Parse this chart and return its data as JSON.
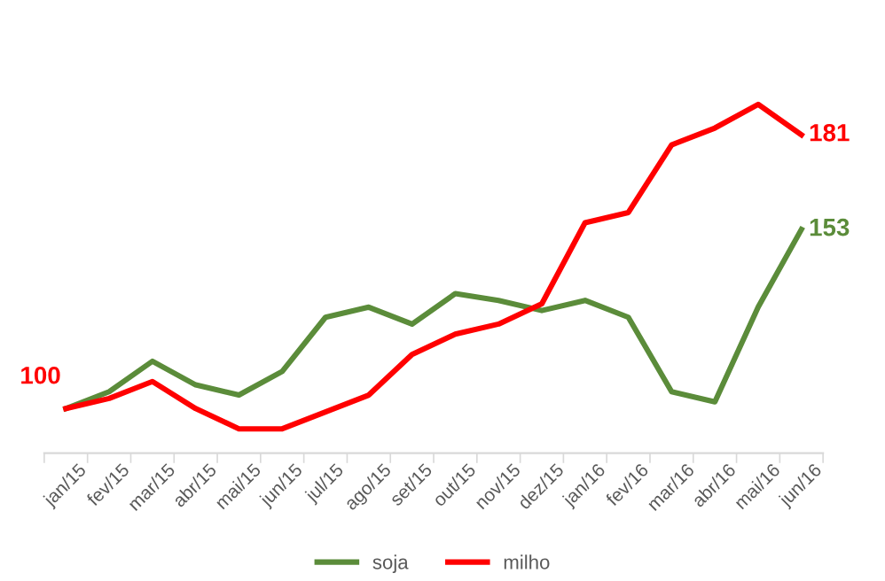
{
  "chart_data": {
    "type": "line",
    "categories": [
      "jan/15",
      "fev/15",
      "mar/15",
      "abr/15",
      "mai/15",
      "jun/15",
      "jul/15",
      "ago/15",
      "set/15",
      "out/15",
      "nov/15",
      "dez/15",
      "jan/16",
      "fev/16",
      "mar/16",
      "abr/16",
      "mai/16",
      "jun/16"
    ],
    "series": [
      {
        "name": "soja",
        "color": "#5b8c3a",
        "values": [
          100,
          105,
          114,
          107,
          104,
          111,
          127,
          130,
          125,
          134,
          132,
          129,
          132,
          127,
          105,
          102,
          130,
          153
        ],
        "value_labels": [
          null,
          null,
          null,
          null,
          null,
          null,
          null,
          null,
          null,
          null,
          null,
          null,
          null,
          null,
          null,
          null,
          null,
          "153"
        ]
      },
      {
        "name": "milho",
        "color": "#ff0000",
        "values": [
          100,
          103,
          108,
          100,
          94,
          94,
          99,
          104,
          116,
          122,
          125,
          131,
          155,
          158,
          178,
          183,
          190,
          181
        ],
        "value_labels": [
          "100",
          null,
          null,
          null,
          null,
          null,
          null,
          null,
          null,
          null,
          null,
          null,
          null,
          null,
          null,
          null,
          null,
          "181"
        ]
      }
    ],
    "legend": "bottom",
    "grid": false,
    "marker": "none",
    "line_style": "solid"
  }
}
